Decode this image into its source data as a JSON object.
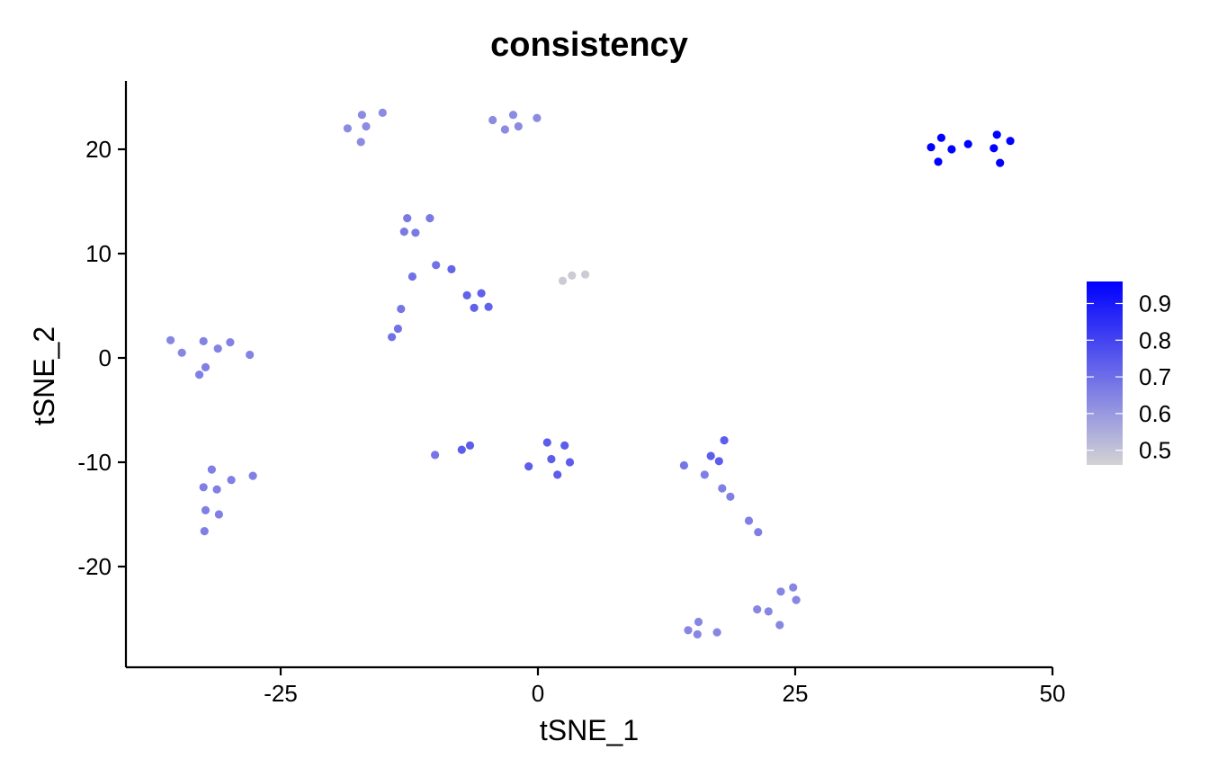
{
  "chart_data": {
    "type": "scatter",
    "title": "consistency",
    "xlabel": "tSNE_1",
    "ylabel": "tSNE_2",
    "xlim": [
      -40,
      50
    ],
    "ylim": [
      -29.5,
      26.5
    ],
    "x_ticks": [
      -25,
      0,
      25,
      50
    ],
    "y_ticks": [
      -20,
      -10,
      0,
      10,
      20
    ],
    "x_tick_labels": [
      "-25",
      "0",
      "25",
      "50"
    ],
    "y_tick_labels": [
      "-20",
      "-10",
      "0",
      "10",
      "20"
    ],
    "grid": false,
    "legend": {
      "placement": "right",
      "type": "colorbar",
      "min": 0.46,
      "max": 0.96,
      "ticks": [
        0.5,
        0.6,
        0.7,
        0.8,
        0.9
      ],
      "tick_labels": [
        "0.5",
        "0.6",
        "0.7",
        "0.8",
        "0.9"
      ],
      "low_color": "#d3d3d3",
      "high_color": "#0000ff"
    },
    "points": [
      {
        "x": -35.7,
        "y": 1.7,
        "v": 0.64
      },
      {
        "x": -34.6,
        "y": 0.5,
        "v": 0.64
      },
      {
        "x": -32.9,
        "y": -1.6,
        "v": 0.66
      },
      {
        "x": -32.3,
        "y": -0.9,
        "v": 0.66
      },
      {
        "x": -32.5,
        "y": 1.6,
        "v": 0.65
      },
      {
        "x": -31.1,
        "y": 0.9,
        "v": 0.65
      },
      {
        "x": -29.9,
        "y": 1.5,
        "v": 0.65
      },
      {
        "x": -28.0,
        "y": 0.3,
        "v": 0.65
      },
      {
        "x": -31.7,
        "y": -10.7,
        "v": 0.66
      },
      {
        "x": -32.5,
        "y": -12.4,
        "v": 0.66
      },
      {
        "x": -31.2,
        "y": -12.6,
        "v": 0.66
      },
      {
        "x": -29.8,
        "y": -11.7,
        "v": 0.66
      },
      {
        "x": -27.7,
        "y": -11.3,
        "v": 0.66
      },
      {
        "x": -32.3,
        "y": -14.6,
        "v": 0.66
      },
      {
        "x": -31.0,
        "y": -15.0,
        "v": 0.66
      },
      {
        "x": -32.4,
        "y": -16.6,
        "v": 0.66
      },
      {
        "x": -18.5,
        "y": 22.0,
        "v": 0.63
      },
      {
        "x": -17.1,
        "y": 23.3,
        "v": 0.63
      },
      {
        "x": -16.7,
        "y": 22.2,
        "v": 0.63
      },
      {
        "x": -17.2,
        "y": 20.7,
        "v": 0.63
      },
      {
        "x": -15.1,
        "y": 23.5,
        "v": 0.63
      },
      {
        "x": -4.4,
        "y": 22.8,
        "v": 0.63
      },
      {
        "x": -3.2,
        "y": 21.9,
        "v": 0.63
      },
      {
        "x": -2.4,
        "y": 23.3,
        "v": 0.63
      },
      {
        "x": -1.9,
        "y": 22.2,
        "v": 0.63
      },
      {
        "x": -0.1,
        "y": 23.0,
        "v": 0.63
      },
      {
        "x": -12.7,
        "y": 13.4,
        "v": 0.67
      },
      {
        "x": -10.5,
        "y": 13.4,
        "v": 0.67
      },
      {
        "x": -13.0,
        "y": 12.1,
        "v": 0.67
      },
      {
        "x": -11.9,
        "y": 12.0,
        "v": 0.67
      },
      {
        "x": -9.9,
        "y": 8.9,
        "v": 0.69
      },
      {
        "x": -8.4,
        "y": 8.5,
        "v": 0.72
      },
      {
        "x": -12.2,
        "y": 7.8,
        "v": 0.69
      },
      {
        "x": -6.9,
        "y": 6.0,
        "v": 0.73
      },
      {
        "x": -5.5,
        "y": 6.2,
        "v": 0.73
      },
      {
        "x": -6.2,
        "y": 4.8,
        "v": 0.73
      },
      {
        "x": -4.8,
        "y": 4.9,
        "v": 0.73
      },
      {
        "x": -13.3,
        "y": 4.7,
        "v": 0.68
      },
      {
        "x": -13.6,
        "y": 2.8,
        "v": 0.69
      },
      {
        "x": -14.2,
        "y": 2.0,
        "v": 0.69
      },
      {
        "x": 2.4,
        "y": 7.4,
        "v": 0.48
      },
      {
        "x": 3.3,
        "y": 7.9,
        "v": 0.48
      },
      {
        "x": 4.6,
        "y": 8.0,
        "v": 0.48
      },
      {
        "x": -10.0,
        "y": -9.3,
        "v": 0.68
      },
      {
        "x": -7.4,
        "y": -8.8,
        "v": 0.74
      },
      {
        "x": -6.6,
        "y": -8.4,
        "v": 0.74
      },
      {
        "x": 0.9,
        "y": -8.1,
        "v": 0.74
      },
      {
        "x": 2.6,
        "y": -8.4,
        "v": 0.74
      },
      {
        "x": -0.9,
        "y": -10.4,
        "v": 0.74
      },
      {
        "x": 1.3,
        "y": -9.7,
        "v": 0.74
      },
      {
        "x": 3.1,
        "y": -10.0,
        "v": 0.74
      },
      {
        "x": 1.9,
        "y": -11.2,
        "v": 0.74
      },
      {
        "x": 14.2,
        "y": -10.3,
        "v": 0.68
      },
      {
        "x": 16.8,
        "y": -9.4,
        "v": 0.74
      },
      {
        "x": 17.6,
        "y": -9.9,
        "v": 0.74
      },
      {
        "x": 18.1,
        "y": -7.9,
        "v": 0.74
      },
      {
        "x": 16.2,
        "y": -11.2,
        "v": 0.66
      },
      {
        "x": 17.9,
        "y": -12.5,
        "v": 0.66
      },
      {
        "x": 18.7,
        "y": -13.3,
        "v": 0.66
      },
      {
        "x": 20.5,
        "y": -15.6,
        "v": 0.66
      },
      {
        "x": 21.4,
        "y": -16.7,
        "v": 0.66
      },
      {
        "x": 14.6,
        "y": -26.1,
        "v": 0.64
      },
      {
        "x": 15.6,
        "y": -25.3,
        "v": 0.64
      },
      {
        "x": 15.5,
        "y": -26.5,
        "v": 0.64
      },
      {
        "x": 17.4,
        "y": -26.3,
        "v": 0.64
      },
      {
        "x": 21.3,
        "y": -24.1,
        "v": 0.64
      },
      {
        "x": 22.4,
        "y": -24.3,
        "v": 0.64
      },
      {
        "x": 23.6,
        "y": -22.4,
        "v": 0.64
      },
      {
        "x": 24.8,
        "y": -22.0,
        "v": 0.64
      },
      {
        "x": 25.1,
        "y": -23.2,
        "v": 0.64
      },
      {
        "x": 23.5,
        "y": -25.6,
        "v": 0.64
      },
      {
        "x": 38.2,
        "y": 20.2,
        "v": 0.96
      },
      {
        "x": 39.2,
        "y": 21.1,
        "v": 0.96
      },
      {
        "x": 38.9,
        "y": 18.8,
        "v": 0.96
      },
      {
        "x": 40.2,
        "y": 20.0,
        "v": 0.96
      },
      {
        "x": 41.8,
        "y": 20.5,
        "v": 0.96
      },
      {
        "x": 44.3,
        "y": 20.1,
        "v": 0.96
      },
      {
        "x": 44.6,
        "y": 21.4,
        "v": 0.96
      },
      {
        "x": 45.9,
        "y": 20.8,
        "v": 0.96
      },
      {
        "x": 44.9,
        "y": 18.7,
        "v": 0.96
      }
    ]
  }
}
